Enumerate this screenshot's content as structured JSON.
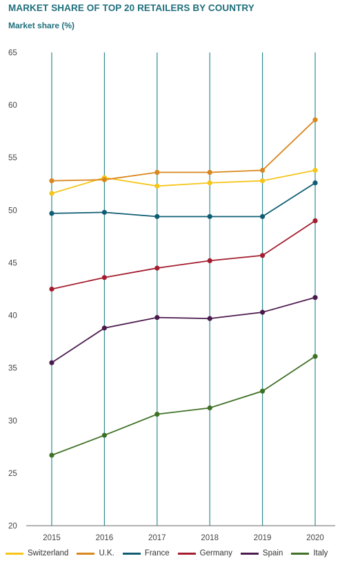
{
  "chart_data": {
    "type": "line",
    "title": "MARKET SHARE OF TOP 20 RETAILERS BY COUNTRY",
    "ylabel": "Market share (%)",
    "x": [
      "2015",
      "2016",
      "2017",
      "2018",
      "2019",
      "2020"
    ],
    "ylim": [
      20,
      65
    ],
    "yticks": [
      20,
      25,
      30,
      35,
      40,
      45,
      50,
      55,
      60,
      65
    ],
    "grid": "vertical",
    "legend": "bottom",
    "series": [
      {
        "name": "Switzerland",
        "color": "#f5c518",
        "values": [
          51.6,
          53.1,
          52.3,
          52.6,
          52.8,
          53.8
        ]
      },
      {
        "name": "U.K.",
        "color": "#d9861c",
        "values": [
          52.8,
          52.9,
          53.6,
          53.6,
          53.8,
          58.6
        ]
      },
      {
        "name": "France",
        "color": "#0f5d73",
        "values": [
          49.7,
          49.8,
          49.4,
          49.4,
          49.4,
          52.6
        ]
      },
      {
        "name": "Germany",
        "color": "#a31d2e",
        "values": [
          42.5,
          43.6,
          44.5,
          45.2,
          45.7,
          49.0
        ]
      },
      {
        "name": "Spain",
        "color": "#4a1a4d",
        "values": [
          35.5,
          38.8,
          39.8,
          39.7,
          40.3,
          41.7
        ]
      },
      {
        "name": "Italy",
        "color": "#3e7025",
        "values": [
          26.7,
          28.6,
          30.6,
          31.2,
          32.8,
          36.1
        ]
      }
    ]
  },
  "colors": {
    "title": "#1f6f7c",
    "gridline": "#2f8a90",
    "axis": "#666666",
    "tick_text": "#444444"
  }
}
